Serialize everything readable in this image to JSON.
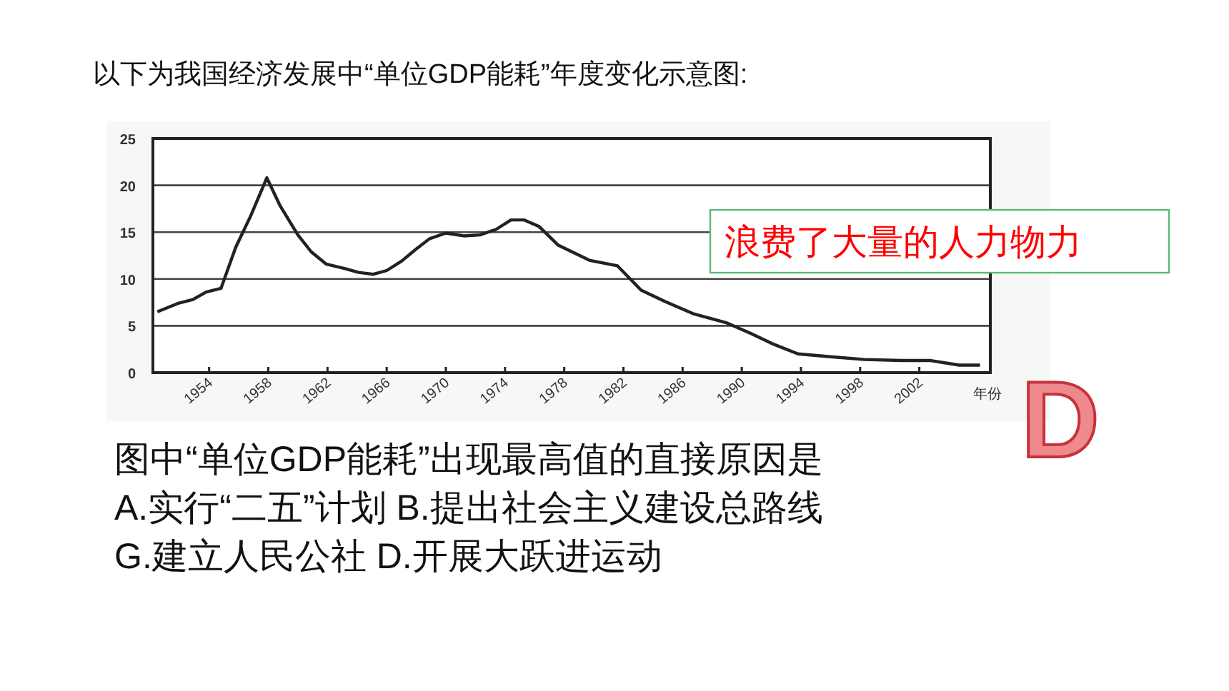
{
  "chart_data": {
    "type": "line",
    "title": "以下为我国经济发展中“单位GDP能耗”年度变化示意图:",
    "xlabel": "年份",
    "x": [
      1950.5,
      1951.9,
      1952.9,
      1953.8,
      1954.8,
      1955.8,
      1956.8,
      1957.9,
      1958.8,
      1960.0,
      1960.9,
      1961.9,
      1963.2,
      1964.1,
      1965.1,
      1966.0,
      1967.0,
      1968.0,
      1968.9,
      1970.0,
      1971.2,
      1972.3,
      1973.4,
      1974.4,
      1975.3,
      1976.3,
      1977.6,
      1979.7,
      1981.6,
      1983.2,
      1984.8,
      1986.7,
      1989.0,
      1990.6,
      1992.2,
      1993.8,
      1996.0,
      1998.3,
      2000.8,
      2002.7,
      2004.7,
      2006.1
    ],
    "series": [
      {
        "color": "#222222",
        "values": [
          6.5,
          7.4,
          7.8,
          8.6,
          9.0,
          13.4,
          16.7,
          20.8,
          17.8,
          14.7,
          12.9,
          11.6,
          11.1,
          10.7,
          10.5,
          10.9,
          11.9,
          13.2,
          14.3,
          14.9,
          14.6,
          14.7,
          15.3,
          16.3,
          16.3,
          15.6,
          13.6,
          12.0,
          11.4,
          8.8,
          7.6,
          6.3,
          5.3,
          4.2,
          3.0,
          2.0,
          1.7,
          1.4,
          1.3,
          1.3,
          0.8,
          0.8
        ]
      }
    ],
    "xlim": [
      1950.2,
      2006.8
    ],
    "xticks": [
      1954,
      1958,
      1962,
      1966,
      1970,
      1974,
      1978,
      1982,
      1986,
      1990,
      1994,
      1998,
      2002
    ],
    "ylim": [
      0,
      25
    ],
    "yticks": [
      0,
      5,
      10,
      15,
      20,
      25
    ],
    "grid": "y",
    "marker": "none",
    "line_style": "solid",
    "annotations": [
      "浪费了大量的人力物力",
      "D",
      "图中“单位GDP能耗”出现最高值的直接原因是",
      "A.实行“二五”计划  B.提出社会主义建设总路线",
      "G.建立人民公社        D.开展大跃进运动"
    ]
  }
}
